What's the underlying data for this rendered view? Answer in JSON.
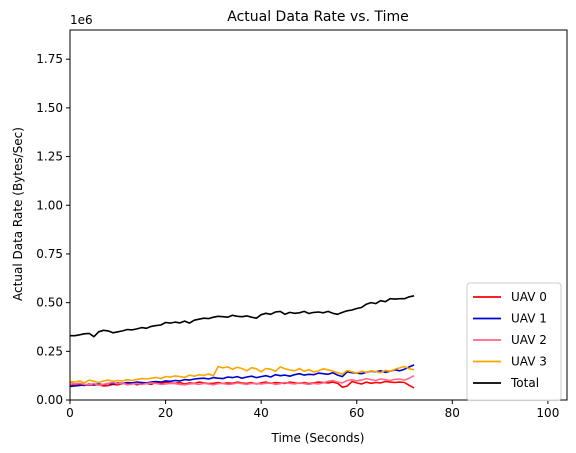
{
  "chart_data": {
    "type": "line",
    "title": "Actual Data Rate vs. Time",
    "xlabel": "Time (Seconds)",
    "ylabel": "Actual Data Rate (Bytes/Sec)",
    "y_offset_text": "1e6",
    "xlim": [
      0,
      104
    ],
    "ylim": [
      0,
      1900000
    ],
    "xticks": [
      0,
      20,
      40,
      60,
      80,
      100
    ],
    "xtick_labels": [
      "0",
      "20",
      "40",
      "60",
      "80",
      "100"
    ],
    "yticks": [
      0,
      250000,
      500000,
      750000,
      1000000,
      1250000,
      1500000,
      1750000
    ],
    "ytick_labels": [
      "0.00",
      "0.25",
      "0.50",
      "0.75",
      "1.00",
      "1.25",
      "1.50",
      "1.75"
    ],
    "grid": false,
    "legend_position": "lower-right",
    "x": [
      0,
      1,
      2,
      3,
      4,
      5,
      6,
      7,
      8,
      9,
      10,
      11,
      12,
      13,
      14,
      15,
      16,
      17,
      18,
      19,
      20,
      21,
      22,
      23,
      24,
      25,
      26,
      27,
      28,
      29,
      30,
      31,
      32,
      33,
      34,
      35,
      36,
      37,
      38,
      39,
      40,
      41,
      42,
      43,
      44,
      45,
      46,
      47,
      48,
      49,
      50,
      51,
      52,
      53,
      54,
      55,
      56,
      57,
      58,
      59,
      60,
      61,
      62,
      63,
      64,
      65,
      66,
      67,
      68,
      69,
      70,
      71,
      72
    ],
    "series": [
      {
        "name": "UAV 0",
        "color": "#ff0000",
        "values": [
          75000,
          78000,
          80000,
          74000,
          82000,
          76000,
          79000,
          72000,
          74000,
          80000,
          78000,
          85000,
          82000,
          88000,
          78000,
          85000,
          86000,
          80000,
          90000,
          84000,
          92000,
          88000,
          86000,
          90000,
          82000,
          88000,
          85000,
          92000,
          88000,
          84000,
          86000,
          90000,
          85000,
          88000,
          86000,
          92000,
          88000,
          85000,
          90000,
          82000,
          88000,
          92000,
          86000,
          90000,
          88000,
          85000,
          92000,
          88000,
          86000,
          90000,
          84000,
          88000,
          92000,
          90000,
          88000,
          92000,
          86000,
          65000,
          72000,
          95000,
          88000,
          82000,
          92000,
          86000,
          90000,
          88000,
          95000,
          92000,
          90000,
          92000,
          90000,
          75000,
          62000
        ]
      },
      {
        "name": "UAV 1",
        "color": "#0000cc",
        "values": [
          70000,
          72000,
          75000,
          78000,
          76000,
          80000,
          82000,
          78000,
          85000,
          82000,
          88000,
          86000,
          90000,
          88000,
          92000,
          90000,
          88000,
          92000,
          95000,
          92000,
          98000,
          96000,
          100000,
          98000,
          105000,
          102000,
          108000,
          110000,
          112000,
          108000,
          115000,
          112000,
          110000,
          118000,
          115000,
          120000,
          112000,
          118000,
          122000,
          115000,
          120000,
          125000,
          118000,
          130000,
          125000,
          128000,
          122000,
          130000,
          135000,
          128000,
          132000,
          130000,
          138000,
          135000,
          132000,
          140000,
          128000,
          120000,
          145000,
          140000,
          138000,
          135000,
          142000,
          148000,
          145000,
          150000,
          142000,
          148000,
          155000,
          150000,
          158000,
          170000,
          180000
        ]
      },
      {
        "name": "UAV 2",
        "color": "#ff6688",
        "values": [
          90000,
          82000,
          86000,
          80000,
          78000,
          84000,
          76000,
          80000,
          86000,
          90000,
          84000,
          88000,
          78000,
          82000,
          85000,
          80000,
          84000,
          88000,
          86000,
          80000,
          82000,
          86000,
          84000,
          80000,
          78000,
          82000,
          84000,
          80000,
          86000,
          82000,
          78000,
          84000,
          86000,
          80000,
          82000,
          88000,
          84000,
          80000,
          86000,
          84000,
          82000,
          86000,
          88000,
          80000,
          84000,
          90000,
          86000,
          82000,
          88000,
          84000,
          80000,
          86000,
          82000,
          88000,
          96000,
          100000,
          92000,
          88000,
          100000,
          105000,
          98000,
          102000,
          110000,
          105000,
          100000,
          108000,
          104000,
          100000,
          106000,
          108000,
          102000,
          112000,
          125000
        ]
      },
      {
        "name": "UAV 3",
        "color": "#ffa500",
        "values": [
          95000,
          92000,
          98000,
          88000,
          102000,
          96000,
          90000,
          98000,
          102000,
          96000,
          100000,
          98000,
          104000,
          100000,
          106000,
          110000,
          108000,
          112000,
          116000,
          110000,
          120000,
          118000,
          124000,
          120000,
          116000,
          128000,
          122000,
          130000,
          126000,
          134000,
          124000,
          172000,
          165000,
          170000,
          158000,
          168000,
          162000,
          150000,
          166000,
          160000,
          145000,
          162000,
          158000,
          148000,
          170000,
          160000,
          154000,
          150000,
          162000,
          148000,
          156000,
          144000,
          150000,
          160000,
          155000,
          148000,
          140000,
          132000,
          152000,
          145000,
          138000,
          148000,
          142000,
          150000,
          146000,
          140000,
          152000,
          148000,
          158000,
          165000,
          172000,
          160000,
          155000
        ]
      },
      {
        "name": "Total",
        "color": "#000000",
        "values": [
          330000,
          330000,
          335000,
          340000,
          342000,
          325000,
          350000,
          358000,
          355000,
          345000,
          350000,
          355000,
          362000,
          360000,
          365000,
          372000,
          368000,
          378000,
          382000,
          385000,
          398000,
          395000,
          400000,
          396000,
          405000,
          395000,
          410000,
          415000,
          420000,
          418000,
          425000,
          430000,
          428000,
          425000,
          435000,
          430000,
          428000,
          432000,
          425000,
          420000,
          438000,
          445000,
          440000,
          452000,
          455000,
          440000,
          450000,
          445000,
          448000,
          455000,
          444000,
          450000,
          452000,
          448000,
          455000,
          445000,
          440000,
          450000,
          458000,
          462000,
          470000,
          475000,
          492000,
          500000,
          495000,
          510000,
          505000,
          520000,
          518000,
          520000,
          520000,
          530000,
          535000
        ]
      }
    ]
  }
}
